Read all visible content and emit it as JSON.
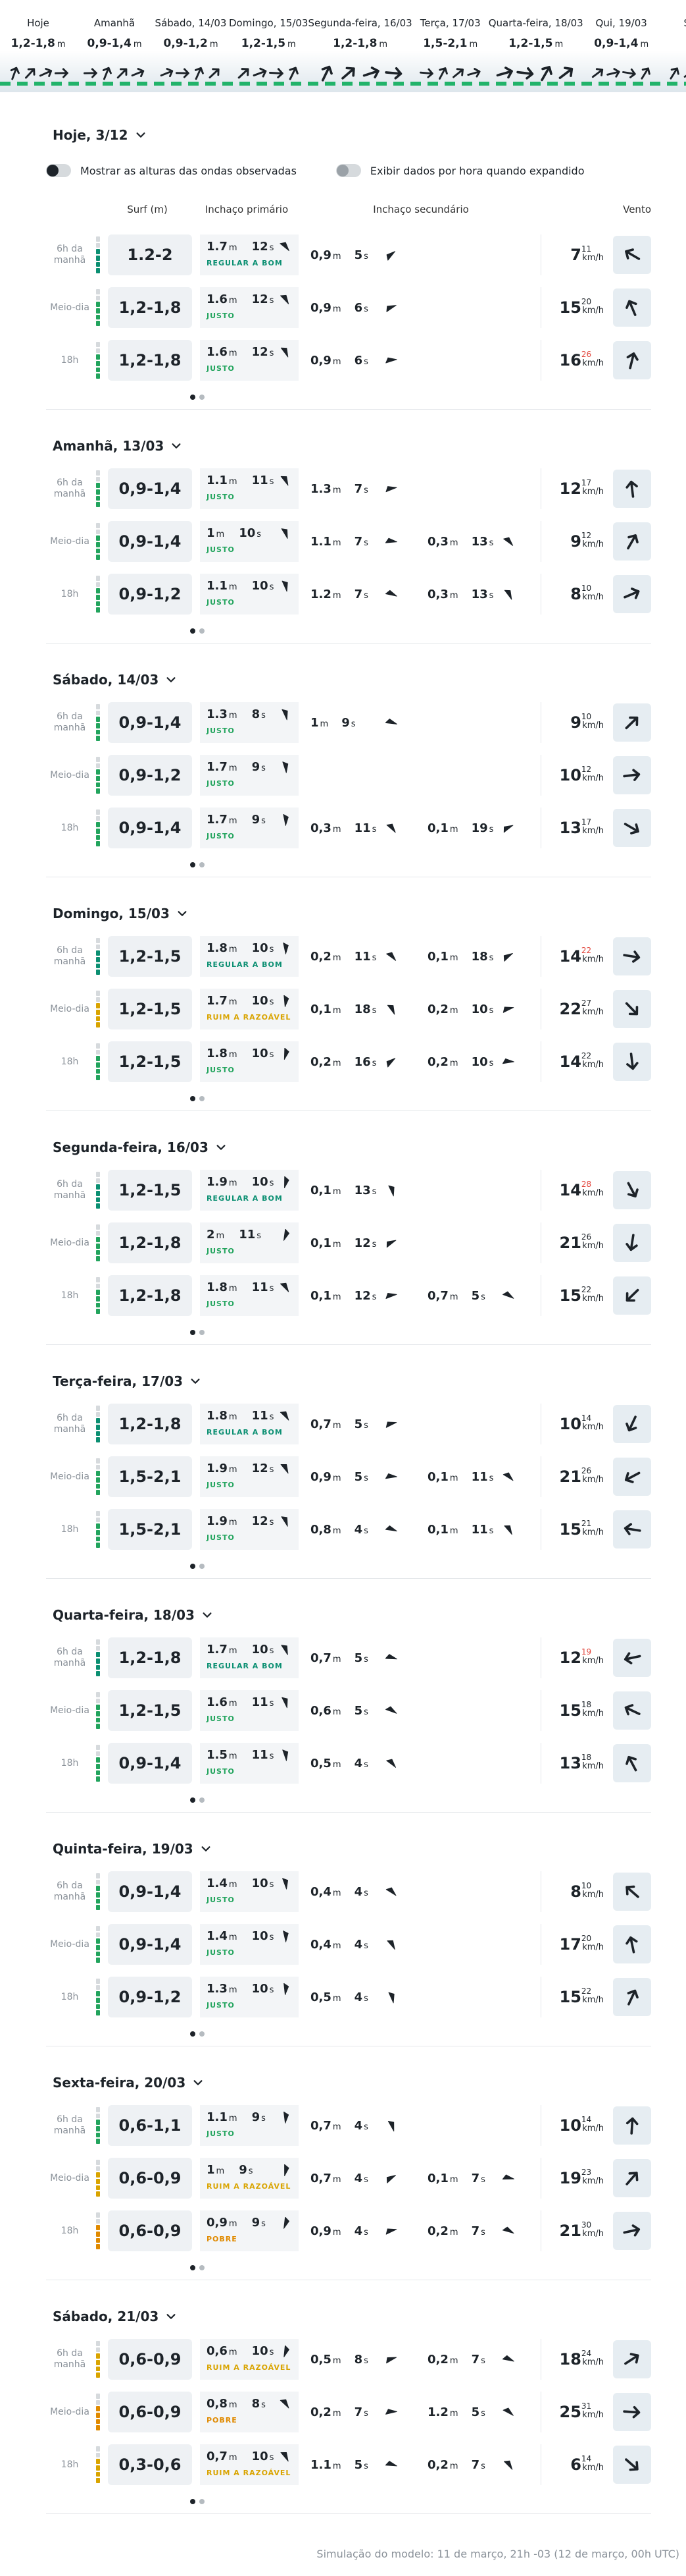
{
  "units": {
    "m": "m",
    "s": "s",
    "kmh": "km/h"
  },
  "forecast_strip": [
    {
      "label": "Hoje",
      "range": "1,2-1,8"
    },
    {
      "label": "Amanhã",
      "range": "0,9-1,4"
    },
    {
      "label": "Sábado, 14/03",
      "range": "0,9-1,2"
    },
    {
      "label": "Domingo, 15/03",
      "range": "1,2-1,5"
    },
    {
      "label": "Segunda-feira, 16/03",
      "range": "1,2-1,8"
    },
    {
      "label": "Terça, 17/03",
      "range": "1,5-2,1"
    },
    {
      "label": "Quarta-feira, 18/03",
      "range": "1,2-1,5"
    },
    {
      "label": "Qui, 19/03",
      "range": "0,9-1,4"
    },
    {
      "label": "Sexta"
    }
  ],
  "toggles": [
    "Mostrar as alturas das ondas observadas",
    "Exibir dados por hora quando expandido"
  ],
  "headers": [
    "Surf (m)",
    "Inchaço primário",
    "Inchaço secundário",
    "Vento"
  ],
  "days": [
    {
      "title": "Hoje, 3/12",
      "rows": [
        {
          "time": "6h da manhã",
          "surf": "1.2-2",
          "primary": {
            "height": "1.7",
            "period": "12",
            "rating": "REGULAR A BOM",
            "rating_color": "#0b8f72"
          },
          "secondary": [
            {
              "height": "0,9",
              "period": "5"
            }
          ],
          "wind": {
            "speed": "7",
            "gust": "11"
          }
        },
        {
          "time": "Meio-dia",
          "surf": "1,2-1,8",
          "primary": {
            "height": "1.6",
            "period": "12",
            "rating": "JUSTO",
            "rating_color": "#22a45d"
          },
          "secondary": [
            {
              "height": "0,9",
              "period": "6"
            }
          ],
          "wind": {
            "speed": "15",
            "gust": "20"
          }
        },
        {
          "time": "18h",
          "surf": "1,2-1,8",
          "primary": {
            "height": "1.6",
            "period": "12",
            "rating": "JUSTO",
            "rating_color": "#22a45d"
          },
          "secondary": [
            {
              "height": "0,9",
              "period": "6"
            }
          ],
          "wind": {
            "speed": "16",
            "gust": "26",
            "gust_color": "#e2453c"
          }
        }
      ]
    },
    {
      "title": "Amanhã, 13/03",
      "rows": [
        {
          "time": "6h da manhã",
          "surf": "0,9-1,4",
          "primary": {
            "height": "1.1",
            "period": "11",
            "rating": "JUSTO",
            "rating_color": "#22a45d"
          },
          "secondary": [
            {
              "height": "1.3",
              "period": "7"
            }
          ],
          "wind": {
            "speed": "12",
            "gust": "17"
          }
        },
        {
          "time": "Meio-dia",
          "surf": "0,9-1,4",
          "primary": {
            "height": "1",
            "period": "10",
            "rating": "JUSTO",
            "rating_color": "#22a45d"
          },
          "secondary": [
            {
              "height": "1.1",
              "period": "7"
            },
            {
              "height": "0,3",
              "period": "13"
            }
          ],
          "wind": {
            "speed": "9",
            "gust": "12"
          }
        },
        {
          "time": "18h",
          "surf": "0,9-1,2",
          "primary": {
            "height": "1.1",
            "period": "10",
            "rating": "JUSTO",
            "rating_color": "#22a45d"
          },
          "secondary": [
            {
              "height": "1.2",
              "period": "7"
            },
            {
              "height": "0,3",
              "period": "13"
            }
          ],
          "wind": {
            "speed": "8",
            "gust": "10"
          }
        }
      ]
    },
    {
      "title": "Sábado, 14/03",
      "rows": [
        {
          "time": "6h da manhã",
          "surf": "0,9-1,4",
          "primary": {
            "height": "1.3",
            "period": "8",
            "rating": "JUSTO",
            "rating_color": "#22a45d"
          },
          "secondary": [
            {
              "height": "1",
              "period": "9"
            }
          ],
          "wind": {
            "speed": "9",
            "gust": "10"
          }
        },
        {
          "time": "Meio-dia",
          "surf": "0,9-1,2",
          "primary": {
            "height": "1.7",
            "period": "9",
            "rating": "JUSTO",
            "rating_color": "#22a45d"
          },
          "secondary": [],
          "wind": {
            "speed": "10",
            "gust": "12"
          }
        },
        {
          "time": "18h",
          "surf": "0,9-1,4",
          "primary": {
            "height": "1.7",
            "period": "9",
            "rating": "JUSTO",
            "rating_color": "#22a45d"
          },
          "secondary": [
            {
              "height": "0,3",
              "period": "11"
            },
            {
              "height": "0,1",
              "period": "19"
            }
          ],
          "wind": {
            "speed": "13",
            "gust": "17"
          }
        }
      ]
    },
    {
      "title": "Domingo, 15/03",
      "rows": [
        {
          "time": "6h da manhã",
          "surf": "1,2-1,5",
          "primary": {
            "height": "1.8",
            "period": "10",
            "rating": "REGULAR A BOM",
            "rating_color": "#0b8f72"
          },
          "secondary": [
            {
              "height": "0,2",
              "period": "11"
            },
            {
              "height": "0,1",
              "period": "18"
            }
          ],
          "wind": {
            "speed": "14",
            "gust": "22",
            "gust_color": "#e2453c"
          }
        },
        {
          "time": "Meio-dia",
          "surf": "1,2-1,5",
          "primary": {
            "height": "1.7",
            "period": "10",
            "rating": "RUIM A RAZOÁVEL",
            "rating_color": "#d9a400"
          },
          "secondary": [
            {
              "height": "0,1",
              "period": "18"
            },
            {
              "height": "0,2",
              "period": "10"
            }
          ],
          "wind": {
            "speed": "22",
            "gust": "27"
          }
        },
        {
          "time": "18h",
          "surf": "1,2-1,5",
          "primary": {
            "height": "1.8",
            "period": "10",
            "rating": "JUSTO",
            "rating_color": "#22a45d"
          },
          "secondary": [
            {
              "height": "0,2",
              "period": "16"
            },
            {
              "height": "0,2",
              "period": "10"
            }
          ],
          "wind": {
            "speed": "14",
            "gust": "22"
          }
        }
      ]
    },
    {
      "title": "Segunda-feira, 16/03",
      "rows": [
        {
          "time": "6h da manhã",
          "surf": "1,2-1,5",
          "primary": {
            "height": "1.9",
            "period": "10",
            "rating": "REGULAR A BOM",
            "rating_color": "#0b8f72"
          },
          "secondary": [
            {
              "height": "0,1",
              "period": "13"
            }
          ],
          "wind": {
            "speed": "14",
            "gust": "28",
            "gust_color": "#e2453c"
          }
        },
        {
          "time": "Meio-dia",
          "surf": "1,2-1,8",
          "primary": {
            "height": "2",
            "period": "11",
            "rating": "JUSTO",
            "rating_color": "#22a45d"
          },
          "secondary": [
            {
              "height": "0,1",
              "period": "12"
            }
          ],
          "wind": {
            "speed": "21",
            "gust": "26"
          }
        },
        {
          "time": "18h",
          "surf": "1,2-1,8",
          "primary": {
            "height": "1.8",
            "period": "11",
            "rating": "JUSTO",
            "rating_color": "#22a45d"
          },
          "secondary": [
            {
              "height": "0,1",
              "period": "12"
            },
            {
              "height": "0,7",
              "period": "5"
            }
          ],
          "wind": {
            "speed": "15",
            "gust": "22"
          }
        }
      ]
    },
    {
      "title": "Terça-feira, 17/03",
      "rows": [
        {
          "time": "6h da manhã",
          "surf": "1,2-1,8",
          "primary": {
            "height": "1.8",
            "period": "11",
            "rating": "REGULAR A BOM",
            "rating_color": "#0b8f72"
          },
          "secondary": [
            {
              "height": "0,7",
              "period": "5"
            }
          ],
          "wind": {
            "speed": "10",
            "gust": "14"
          }
        },
        {
          "time": "Meio-dia",
          "surf": "1,5-2,1",
          "primary": {
            "height": "1.9",
            "period": "12",
            "rating": "JUSTO",
            "rating_color": "#22a45d"
          },
          "secondary": [
            {
              "height": "0,9",
              "period": "5"
            },
            {
              "height": "0,1",
              "period": "11"
            }
          ],
          "wind": {
            "speed": "21",
            "gust": "26"
          }
        },
        {
          "time": "18h",
          "surf": "1,5-2,1",
          "primary": {
            "height": "1.9",
            "period": "12",
            "rating": "JUSTO",
            "rating_color": "#22a45d"
          },
          "secondary": [
            {
              "height": "0,8",
              "period": "4"
            },
            {
              "height": "0,1",
              "period": "11"
            }
          ],
          "wind": {
            "speed": "15",
            "gust": "21"
          }
        }
      ]
    },
    {
      "title": "Quarta-feira, 18/03",
      "rows": [
        {
          "time": "6h da manhã",
          "surf": "1,2-1,8",
          "primary": {
            "height": "1.7",
            "period": "10",
            "rating": "REGULAR A BOM",
            "rating_color": "#0b8f72"
          },
          "secondary": [
            {
              "height": "0,7",
              "period": "5"
            }
          ],
          "wind": {
            "speed": "12",
            "gust": "19",
            "gust_color": "#e2453c"
          }
        },
        {
          "time": "Meio-dia",
          "surf": "1,2-1,5",
          "primary": {
            "height": "1.6",
            "period": "11",
            "rating": "JUSTO",
            "rating_color": "#22a45d"
          },
          "secondary": [
            {
              "height": "0,6",
              "period": "5"
            }
          ],
          "wind": {
            "speed": "15",
            "gust": "18"
          }
        },
        {
          "time": "18h",
          "surf": "0,9-1,4",
          "primary": {
            "height": "1.5",
            "period": "11",
            "rating": "JUSTO",
            "rating_color": "#22a45d"
          },
          "secondary": [
            {
              "height": "0,5",
              "period": "4"
            }
          ],
          "wind": {
            "speed": "13",
            "gust": "18"
          }
        }
      ]
    },
    {
      "title": "Quinta-feira, 19/03",
      "rows": [
        {
          "time": "6h da manhã",
          "surf": "0,9-1,4",
          "primary": {
            "height": "1.4",
            "period": "10",
            "rating": "JUSTO",
            "rating_color": "#22a45d"
          },
          "secondary": [
            {
              "height": "0,4",
              "period": "4"
            }
          ],
          "wind": {
            "speed": "8",
            "gust": "10"
          }
        },
        {
          "time": "Meio-dia",
          "surf": "0,9-1,4",
          "primary": {
            "height": "1.4",
            "period": "10",
            "rating": "JUSTO",
            "rating_color": "#22a45d"
          },
          "secondary": [
            {
              "height": "0,4",
              "period": "4"
            }
          ],
          "wind": {
            "speed": "17",
            "gust": "20"
          }
        },
        {
          "time": "18h",
          "surf": "0,9-1,2",
          "primary": {
            "height": "1.3",
            "period": "10",
            "rating": "JUSTO",
            "rating_color": "#22a45d"
          },
          "secondary": [
            {
              "height": "0,5",
              "period": "4"
            }
          ],
          "wind": {
            "speed": "15",
            "gust": "22"
          }
        }
      ]
    },
    {
      "title": "Sexta-feira, 20/03",
      "rows": [
        {
          "time": "6h da manhã",
          "surf": "0,6-1,1",
          "primary": {
            "height": "1.1",
            "period": "9",
            "rating": "JUSTO",
            "rating_color": "#22a45d"
          },
          "secondary": [
            {
              "height": "0,7",
              "period": "4"
            }
          ],
          "wind": {
            "speed": "10",
            "gust": "14"
          }
        },
        {
          "time": "Meio-dia",
          "surf": "0,6-0,9",
          "primary": {
            "height": "1",
            "period": "9",
            "rating": "RUIM A RAZOÁVEL",
            "rating_color": "#d9a400"
          },
          "secondary": [
            {
              "height": "0,7",
              "period": "4"
            },
            {
              "height": "0,1",
              "period": "7"
            }
          ],
          "wind": {
            "speed": "19",
            "gust": "23"
          }
        },
        {
          "time": "18h",
          "surf": "0,6-0,9",
          "primary": {
            "height": "0,9",
            "period": "9",
            "rating": "POBRE",
            "rating_color": "#e08a00"
          },
          "secondary": [
            {
              "height": "0,9",
              "period": "4"
            },
            {
              "height": "0,2",
              "period": "7"
            }
          ],
          "wind": {
            "speed": "21",
            "gust": "30"
          }
        }
      ]
    },
    {
      "title": "Sábado, 21/03",
      "rows": [
        {
          "time": "6h da manhã",
          "surf": "0,6-0,9",
          "primary": {
            "height": "0,6",
            "period": "10",
            "rating": "RUIM A RAZOÁVEL",
            "rating_color": "#d9a400"
          },
          "secondary": [
            {
              "height": "0,5",
              "period": "8"
            },
            {
              "height": "0,2",
              "period": "7"
            }
          ],
          "wind": {
            "speed": "18",
            "gust": "24"
          }
        },
        {
          "time": "Meio-dia",
          "surf": "0,6-0,9",
          "primary": {
            "height": "0,8",
            "period": "8",
            "rating": "POBRE",
            "rating_color": "#e08a00"
          },
          "secondary": [
            {
              "height": "0,2",
              "period": "7"
            },
            {
              "height": "1.2",
              "period": "5"
            }
          ],
          "wind": {
            "speed": "25",
            "gust": "31"
          }
        },
        {
          "time": "18h",
          "surf": "0,3-0,6",
          "primary": {
            "height": "0,7",
            "period": "10",
            "rating": "RUIM A RAZOÁVEL",
            "rating_color": "#d9a400"
          },
          "secondary": [
            {
              "height": "1.1",
              "period": "5"
            },
            {
              "height": "0,2",
              "period": "7"
            }
          ],
          "wind": {
            "speed": "6",
            "gust": "14"
          }
        }
      ]
    }
  ],
  "footer": "Simulação do modelo: 11 de março, 21h -03 (12 de março, 00h UTC)"
}
